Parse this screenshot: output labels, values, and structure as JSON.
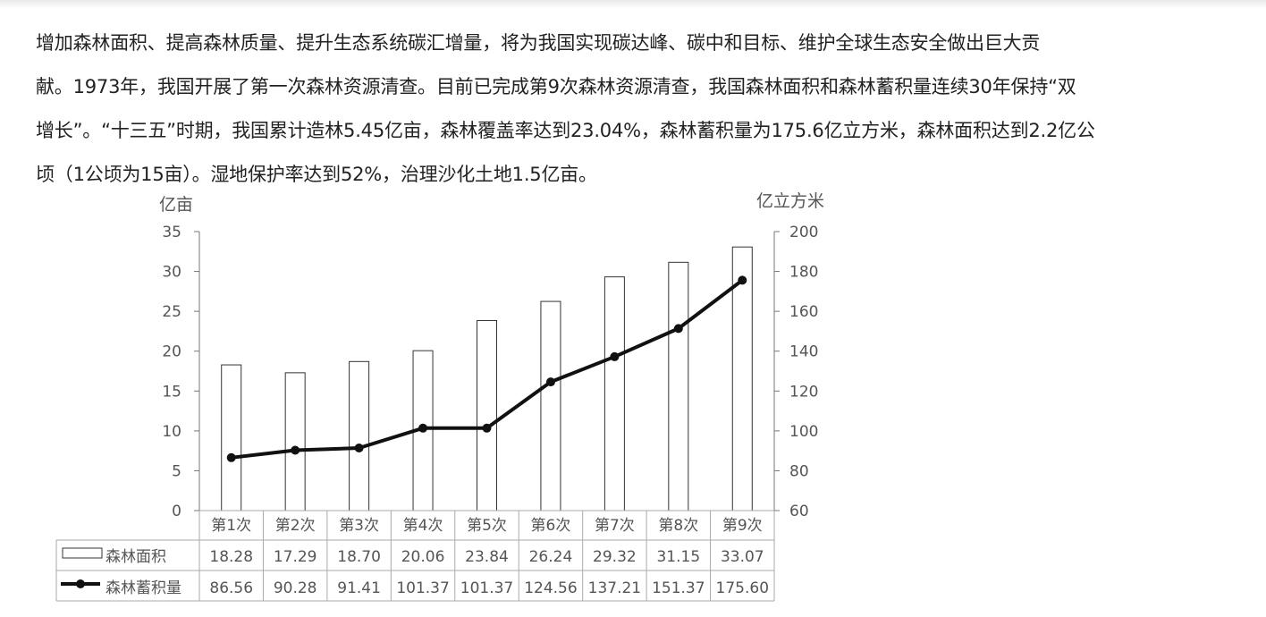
{
  "passage": {
    "lines": [
      "增加森林面积、提高森林质量、提升生态系统碳汇增量，将为我国实现碳达峰、碳中和目标、维护全球生态安全做出巨大贡",
      "献。1973年，我国开展了第一次森林资源清查。目前已完成第9次森林资源清查，我国森林面积和森林蓄积量连续30年保持“双",
      "增长”。“十三五”时期，我国累计造林5.45亿亩，森林覆盖率达到23.04%，森林蓄积量为175.6亿立方米，森林面积达到2.2亿公",
      "顷（1公顷为15亩）。湿地保护率达到52%，治理沙化土地1.5亿亩。"
    ]
  },
  "chart_data": {
    "type": "bar",
    "title": "",
    "left_axis_unit": "亿亩",
    "right_axis_unit": "亿立方米",
    "categories": [
      "第1次",
      "第2次",
      "第3次",
      "第4次",
      "第5次",
      "第6次",
      "第7次",
      "第8次",
      "第9次"
    ],
    "left_ylim": [
      0,
      35
    ],
    "left_ticks": [
      0,
      5,
      10,
      15,
      20,
      25,
      30,
      35
    ],
    "right_ylim": [
      60,
      200
    ],
    "right_ticks": [
      60,
      80,
      100,
      120,
      140,
      160,
      180,
      200
    ],
    "grid": false,
    "legend": "data-table",
    "series": [
      {
        "name": "森林面积",
        "kind": "bar",
        "axis": "left",
        "values": [
          18.28,
          17.29,
          18.7,
          20.06,
          23.84,
          26.24,
          29.32,
          31.15,
          33.07
        ],
        "labels": [
          "18.28",
          "17.29",
          "18.70",
          "20.06",
          "23.84",
          "26.24",
          "29.32",
          "31.15",
          "33.07"
        ]
      },
      {
        "name": "森林蓄积量",
        "kind": "line",
        "axis": "right",
        "values": [
          86.56,
          90.28,
          91.41,
          101.37,
          101.37,
          124.56,
          137.21,
          151.37,
          175.6
        ],
        "labels": [
          "86.56",
          "90.28",
          "91.41",
          "101.37",
          "101.37",
          "124.56",
          "137.21",
          "151.37",
          "175.60"
        ]
      }
    ]
  }
}
